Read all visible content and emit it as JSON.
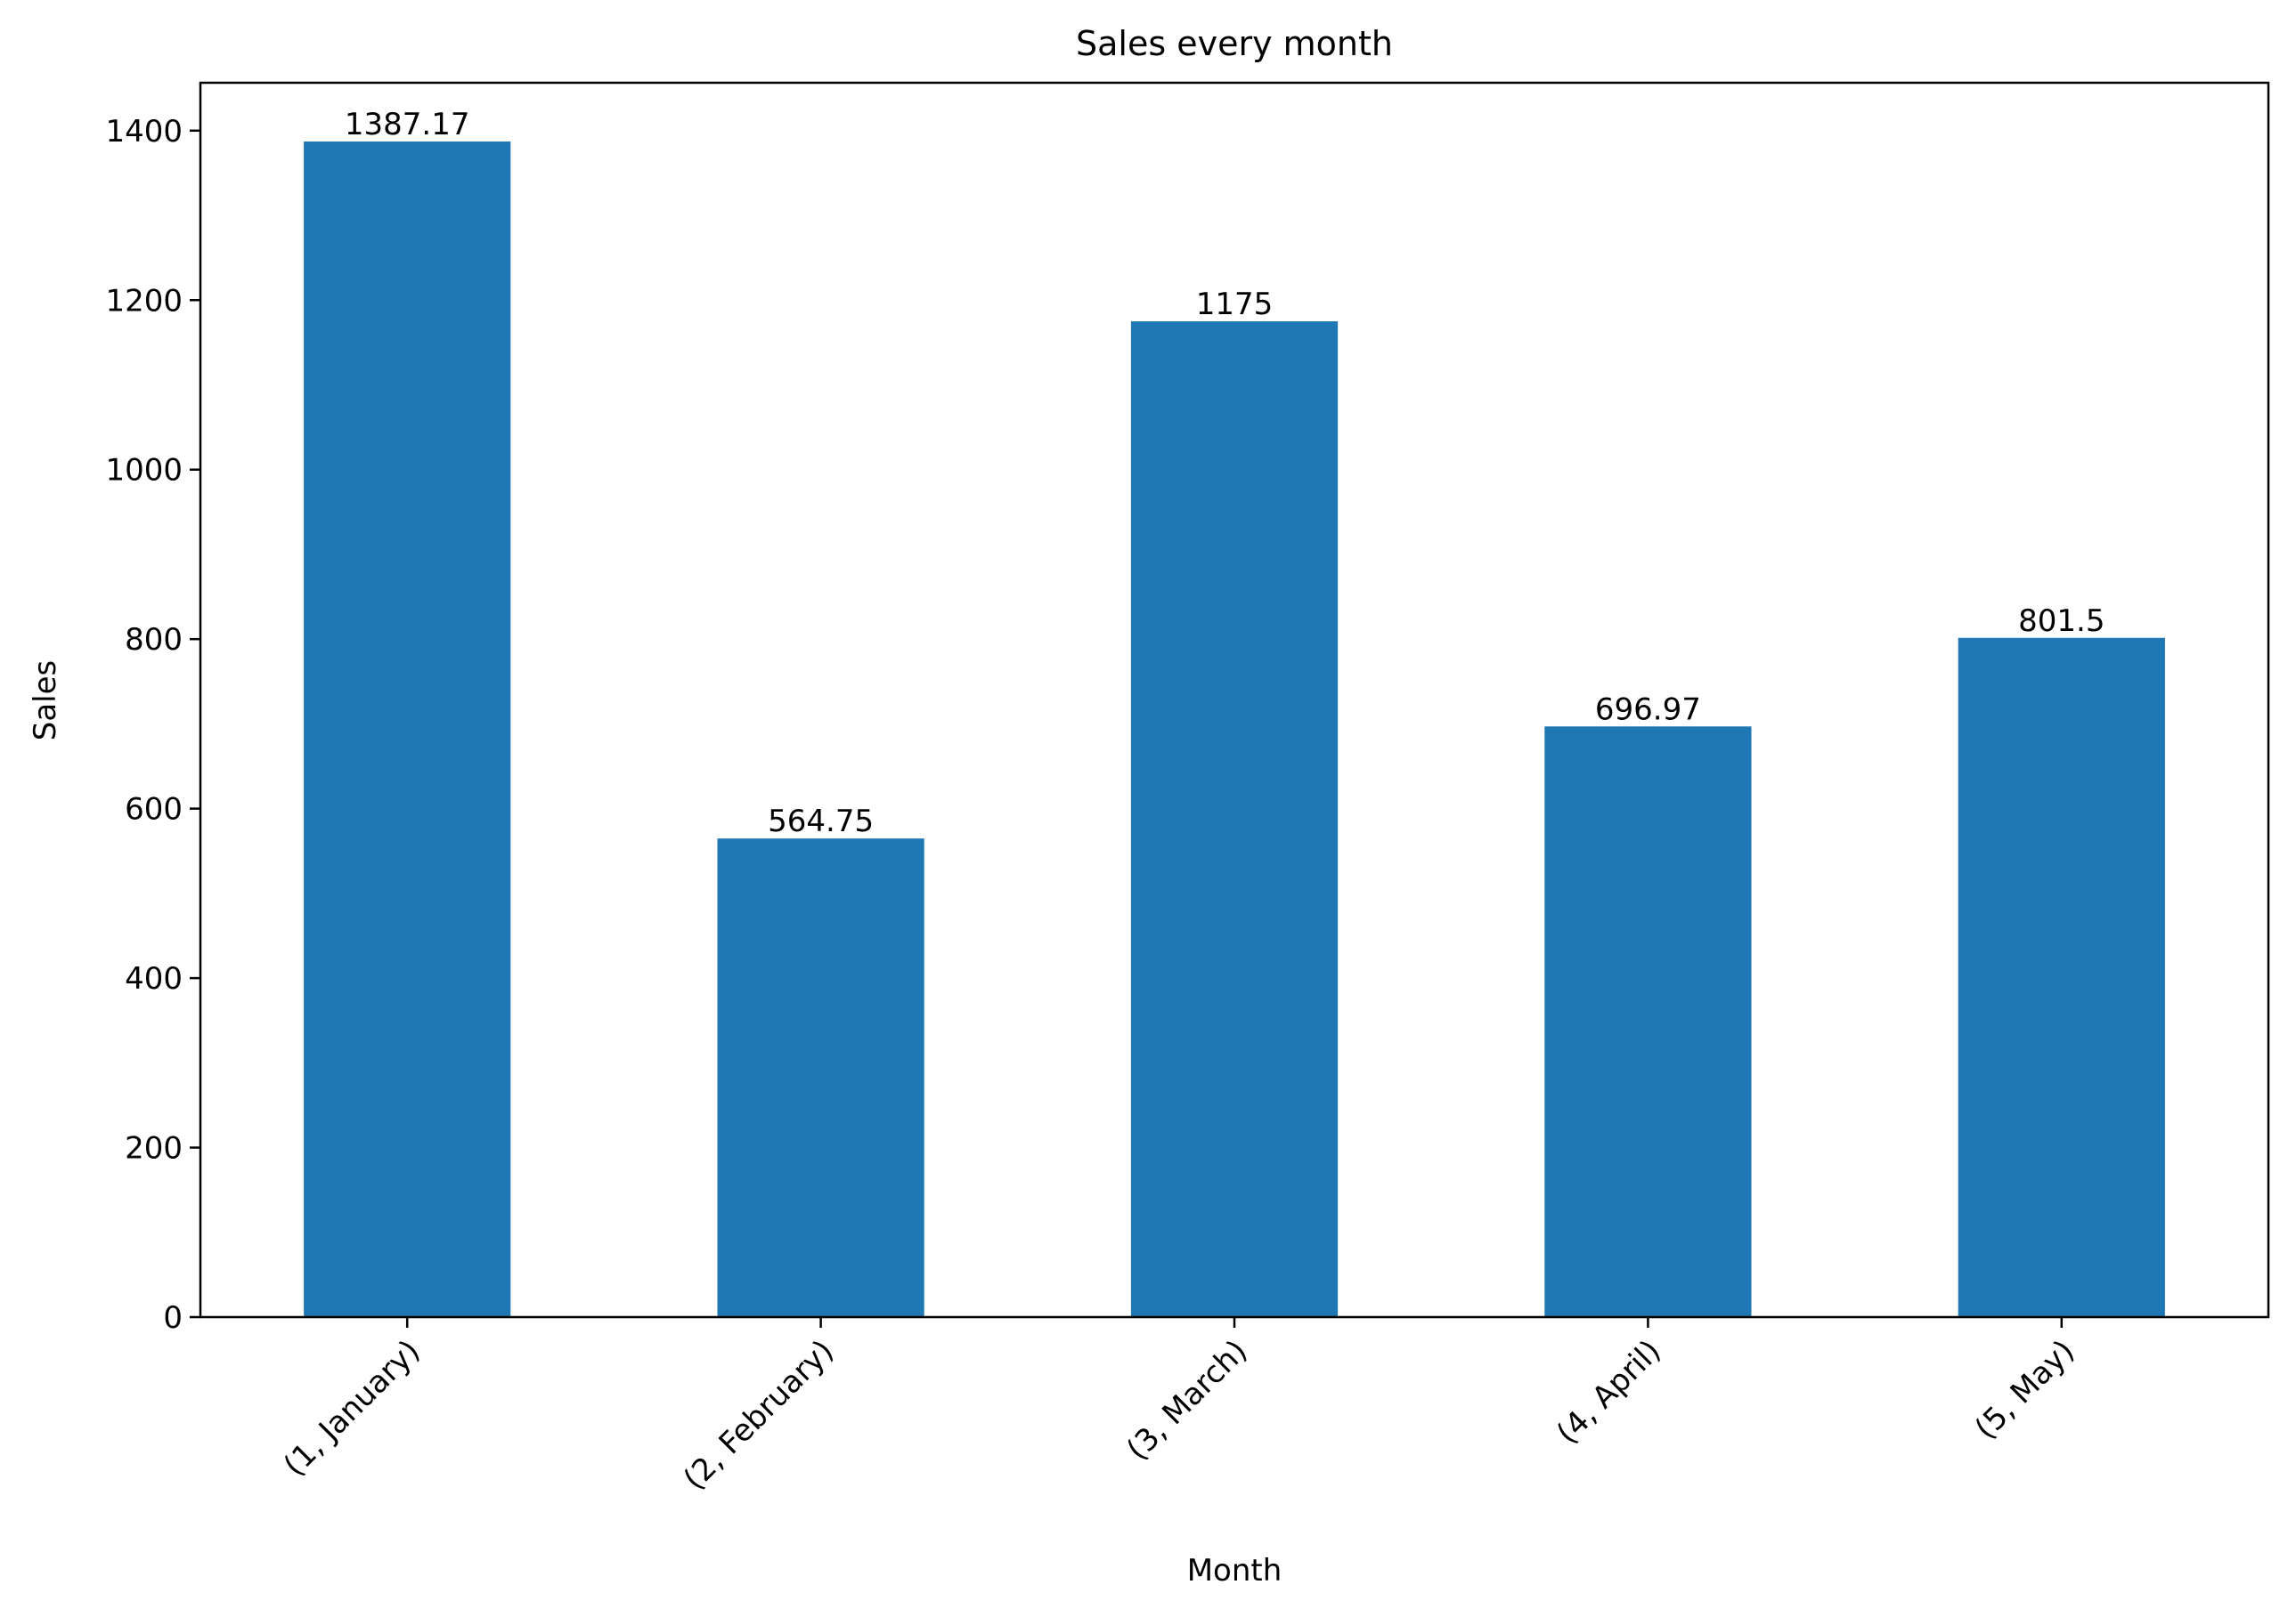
{
  "chart_data": {
    "type": "bar",
    "title": "Sales every month",
    "xlabel": "Month",
    "ylabel": "Sales",
    "categories": [
      "(1, January)",
      "(2, February)",
      "(3, March)",
      "(4, April)",
      "(5, May)"
    ],
    "values": [
      1387.17,
      564.75,
      1175,
      696.97,
      801.5
    ],
    "data_labels": [
      "1387.17",
      "564.75",
      "1175",
      "696.97",
      "801.5"
    ],
    "ylim": [
      0,
      1456.5
    ],
    "yticks": [
      0,
      200,
      400,
      600,
      800,
      1000,
      1200,
      1400
    ],
    "ytick_labels": [
      "0",
      "200",
      "400",
      "600",
      "800",
      "1000",
      "1200",
      "1400"
    ],
    "grid": false,
    "legend": "none",
    "bar_color": "#1f77b4",
    "xtick_rotation": "45 degrees"
  }
}
